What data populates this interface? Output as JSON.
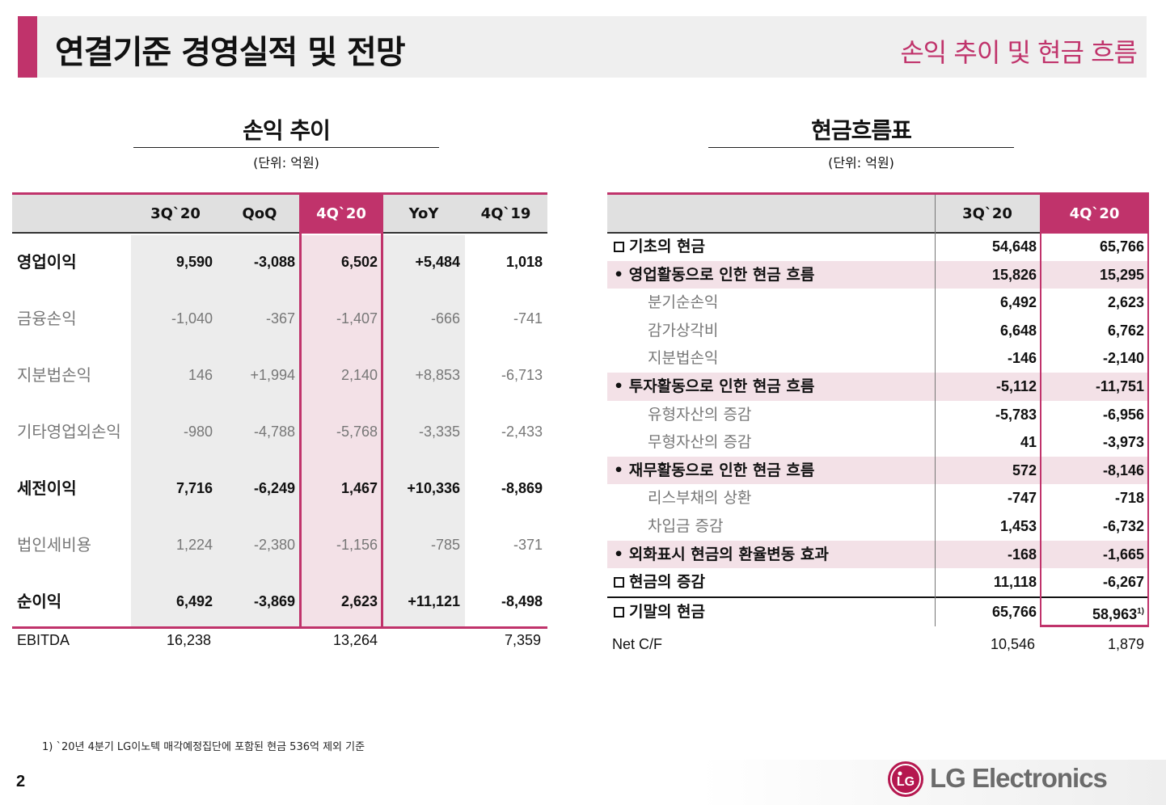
{
  "header": {
    "title": "연결기준 경영실적 및 전망",
    "subtitle": "손익 추이 및 현금 흐름"
  },
  "colors": {
    "accent": "#c0336b",
    "header_bg": "#efefef",
    "highlight_bg": "#f3e1e7"
  },
  "pl": {
    "title": "손익 추이",
    "unit": "(단위: 억원)",
    "columns": [
      "3Q`20",
      "QoQ",
      "4Q`20",
      "YoY",
      "4Q`19"
    ],
    "rows": [
      {
        "label": "영업이익",
        "values": [
          "9,590",
          "-3,088",
          "6,502",
          "+5,484",
          "1,018"
        ]
      },
      {
        "label": "금융손익",
        "values": [
          "-1,040",
          "-367",
          "-1,407",
          "-666",
          "-741"
        ]
      },
      {
        "label": "지분법손익",
        "values": [
          "146",
          "+1,994",
          "2,140",
          "+8,853",
          "-6,713"
        ]
      },
      {
        "label": "기타영업외손익",
        "values": [
          "-980",
          "-4,788",
          "-5,768",
          "-3,335",
          "-2,433"
        ]
      },
      {
        "label": "세전이익",
        "values": [
          "7,716",
          "-6,249",
          "1,467",
          "+10,336",
          "-8,869"
        ]
      },
      {
        "label": "법인세비용",
        "values": [
          "1,224",
          "-2,380",
          "-1,156",
          "-785",
          "-371"
        ]
      },
      {
        "label": "순이익",
        "values": [
          "6,492",
          "-3,869",
          "2,623",
          "+11,121",
          "-8,498"
        ]
      }
    ],
    "ebitda": {
      "label": "EBITDA",
      "q3_20": "16,238",
      "q4_20": "13,264",
      "q4_19": "7,359"
    }
  },
  "cf": {
    "title": "현금흐름표",
    "unit": "(단위: 억원)",
    "columns": [
      "3Q`20",
      "4Q`20"
    ],
    "rows": [
      {
        "label": "기초의 현금",
        "values": [
          "54,648",
          "65,766"
        ]
      },
      {
        "label": "• 영업활동으로 인한 현금 흐름",
        "values": [
          "15,826",
          "15,295"
        ]
      },
      {
        "label": "분기순손익",
        "values": [
          "6,492",
          "2,623"
        ]
      },
      {
        "label": "감가상각비",
        "values": [
          "6,648",
          "6,762"
        ]
      },
      {
        "label": "지분법손익",
        "values": [
          "-146",
          "-2,140"
        ]
      },
      {
        "label": "• 투자활동으로 인한 현금 흐름",
        "values": [
          "-5,112",
          "-11,751"
        ]
      },
      {
        "label": "유형자산의 증감",
        "values": [
          "-5,783",
          "-6,956"
        ]
      },
      {
        "label": "무형자산의 증감",
        "values": [
          "41",
          "-3,973"
        ]
      },
      {
        "label": "• 재무활동으로 인한 현금 흐름",
        "values": [
          "572",
          "-8,146"
        ]
      },
      {
        "label": "리스부채의 상환",
        "values": [
          "-747",
          "-718"
        ]
      },
      {
        "label": "차입금 증감",
        "values": [
          "1,453",
          "-6,732"
        ]
      },
      {
        "label": "• 외화표시 현금의 환율변동 효과",
        "values": [
          "-168",
          "-1,665"
        ]
      },
      {
        "label": "현금의 증감",
        "values": [
          "11,118",
          "-6,267"
        ]
      },
      {
        "label": "기말의 현금",
        "values": [
          "65,766",
          "58,963"
        ]
      }
    ],
    "end_note_mark": "1)",
    "net": {
      "label": "Net C/F",
      "q3_20": "10,546",
      "q4_20": "1,879"
    }
  },
  "footnote": "1) `20년 4분기 LG이노텍 매각예정집단에 포함된 현금 536억 제외 기준",
  "page_number": "2",
  "logo": {
    "mark_text": "LG",
    "word": "LG Electronics"
  }
}
